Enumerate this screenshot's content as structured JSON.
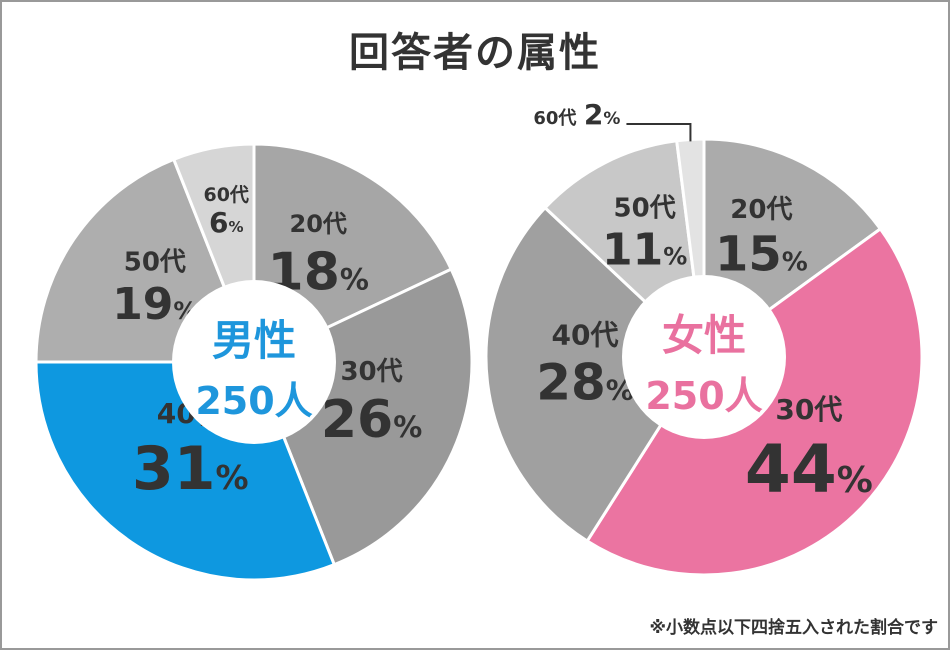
{
  "title": "回答者の属性",
  "footnote": "※小数点以下四捨五入された割合です",
  "chart_data": [
    {
      "type": "pie",
      "center_label": "男性",
      "center_count": "250人",
      "center_color": "#1E96DC",
      "categories": [
        "20代",
        "30代",
        "40代",
        "50代",
        "60代"
      ],
      "values": [
        18,
        26,
        31,
        19,
        6
      ],
      "value_labels": [
        "18",
        "26",
        "31",
        "19",
        "6"
      ],
      "unit": "%",
      "colors": [
        "#A6A6A6",
        "#999999",
        "#0E98E0",
        "#AEAEAE",
        "#D6D6D6"
      ]
    },
    {
      "type": "pie",
      "center_label": "女性",
      "center_count": "250人",
      "center_color": "#E9719F",
      "categories": [
        "20代",
        "30代",
        "40代",
        "50代",
        "60代"
      ],
      "values": [
        15,
        44,
        28,
        11,
        2
      ],
      "value_labels": [
        "15",
        "44",
        "28",
        "11",
        "2"
      ],
      "unit": "%",
      "colors": [
        "#ABABAB",
        "#EB74A1",
        "#A0A0A0",
        "#C8C8C8",
        "#E3E3E3"
      ]
    }
  ]
}
